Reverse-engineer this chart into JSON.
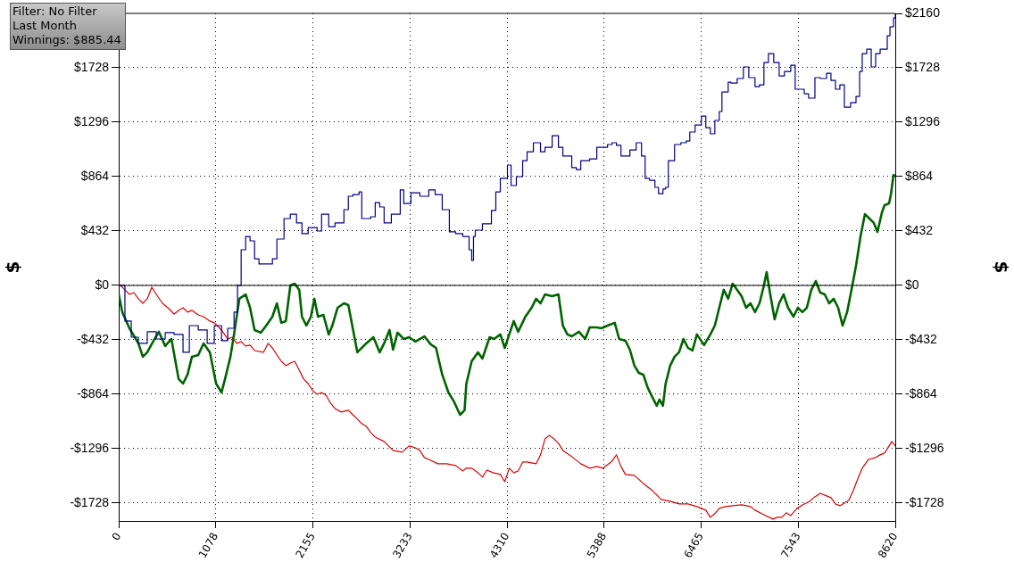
{
  "chart_data": {
    "type": "line",
    "ylabel": "$",
    "y2label": "$",
    "annotations": [
      "Filter: No Filter",
      "Last Month",
      "Winnings: $885.44"
    ],
    "xlim": [
      0,
      8620
    ],
    "xticks": [
      0,
      1078,
      2155,
      3233,
      4310,
      5388,
      6465,
      7543,
      8620
    ],
    "ylim": [
      -1870,
      2160
    ],
    "yticks": [
      {
        "value": -1728,
        "label": "-$1728"
      },
      {
        "value": -1296,
        "label": "-$1296"
      },
      {
        "value": -864,
        "label": "-$864"
      },
      {
        "value": -432,
        "label": "-$432"
      },
      {
        "value": 0,
        "label": "$0"
      },
      {
        "value": 432,
        "label": "$432"
      },
      {
        "value": 864,
        "label": "$864"
      },
      {
        "value": 1296,
        "label": "$1296"
      },
      {
        "value": 1728,
        "label": "$1728"
      }
    ],
    "y2lim": [
      -1870,
      2160
    ],
    "y2ticks": [
      {
        "value": -1728,
        "label": "-$1728"
      },
      {
        "value": -1296,
        "label": "-$1296"
      },
      {
        "value": -864,
        "label": "-$864"
      },
      {
        "value": -432,
        "label": "-$432"
      },
      {
        "value": 0,
        "label": "$0"
      },
      {
        "value": 432,
        "label": "$432"
      },
      {
        "value": 864,
        "label": "$864"
      },
      {
        "value": 1296,
        "label": "$1296"
      },
      {
        "value": 1728,
        "label": "$1728"
      },
      {
        "value": 2160,
        "label": "$2160"
      }
    ],
    "grid": true,
    "legend": false,
    "ref_lines": [
      {
        "axis": "y",
        "value": 0,
        "color": "#000000"
      }
    ],
    "series": [
      {
        "type": "step",
        "color": "#00008b",
        "x": [
          0,
          69,
          139,
          218,
          317,
          417,
          516,
          615,
          714,
          784,
          883,
          982,
          1061,
          1141,
          1210,
          1280,
          1319,
          1359,
          1409,
          1458,
          1508,
          1557,
          1657,
          1706,
          1756,
          1835,
          1905,
          1974,
          2034,
          2103,
          2202,
          2252,
          2331,
          2401,
          2500,
          2549,
          2599,
          2668,
          2698,
          2797,
          2847,
          2897,
          2946,
          3026,
          3125,
          3164,
          3244,
          3343,
          3442,
          3512,
          3591,
          3670,
          3740,
          3819,
          3889,
          3918,
          3938,
          3958,
          4037,
          4137,
          4186,
          4236,
          4315,
          4355,
          4414,
          4484,
          4533,
          4603,
          4682,
          4732,
          4811,
          4881,
          4930,
          5029,
          5079,
          5129,
          5228,
          5307,
          5426,
          5476,
          5525,
          5575,
          5674,
          5744,
          5803,
          5843,
          5892,
          5952,
          5992,
          6041,
          6071,
          6101,
          6170,
          6240,
          6299,
          6339,
          6398,
          6468,
          6517,
          6567,
          6617,
          6666,
          6696,
          6765,
          6795,
          6865,
          6934,
          6994,
          7063,
          7113,
          7162,
          7212,
          7271,
          7331,
          7390,
          7460,
          7509,
          7609,
          7658,
          7728,
          7787,
          7857,
          7906,
          7956,
          8005,
          8055,
          8124,
          8184,
          8224,
          8253,
          8303,
          8353,
          8402,
          8452,
          8531,
          8561,
          8601,
          8620
        ],
        "values": [
          0,
          -283,
          -411,
          -460,
          -368,
          -425,
          -375,
          -389,
          -531,
          -319,
          -354,
          -460,
          -319,
          -439,
          -340,
          -212,
          0,
          283,
          389,
          354,
          212,
          170,
          170,
          212,
          368,
          531,
          566,
          496,
          411,
          460,
          432,
          566,
          467,
          496,
          602,
          708,
          722,
          743,
          531,
          545,
          658,
          623,
          496,
          566,
          758,
          651,
          736,
          708,
          758,
          722,
          602,
          425,
          411,
          389,
          283,
          198,
          389,
          439,
          489,
          595,
          743,
          850,
          956,
          793,
          864,
          991,
          1062,
          1133,
          1062,
          1097,
          1189,
          1097,
          1027,
          935,
          920,
          991,
          1005,
          1097,
          1119,
          1133,
          1112,
          1027,
          1076,
          1133,
          1027,
          850,
          835,
          779,
          729,
          765,
          779,
          991,
          1119,
          1133,
          1147,
          1218,
          1274,
          1345,
          1253,
          1204,
          1310,
          1381,
          1536,
          1614,
          1607,
          1643,
          1735,
          1650,
          1579,
          1593,
          1770,
          1841,
          1770,
          1664,
          1699,
          1749,
          1558,
          1522,
          1487,
          1650,
          1643,
          1685,
          1628,
          1558,
          1593,
          1416,
          1451,
          1501,
          1699,
          1841,
          1876,
          1735,
          1841,
          1876,
          1982,
          2053,
          2124,
          2159
        ]
      },
      {
        "color": "#006400",
        "x": [
          0,
          40,
          119,
          218,
          268,
          317,
          387,
          446,
          516,
          585,
          665,
          714,
          764,
          813,
          883,
          942,
          1012,
          1081,
          1141,
          1180,
          1240,
          1280,
          1339,
          1409,
          1458,
          1508,
          1577,
          1637,
          1706,
          1756,
          1805,
          1855,
          1905,
          1954,
          2004,
          2034,
          2083,
          2133,
          2172,
          2212,
          2272,
          2331,
          2371,
          2430,
          2500,
          2549,
          2649,
          2748,
          2827,
          2897,
          2946,
          3006,
          3045,
          3095,
          3164,
          3224,
          3293,
          3393,
          3462,
          3522,
          3591,
          3660,
          3720,
          3789,
          3839,
          3859,
          3918,
          3988,
          4037,
          4117,
          4166,
          4236,
          4285,
          4335,
          4385,
          4434,
          4514,
          4583,
          4633,
          4682,
          4732,
          4811,
          4881,
          4930,
          4980,
          5029,
          5109,
          5178,
          5228,
          5307,
          5357,
          5426,
          5506,
          5555,
          5625,
          5674,
          5724,
          5773,
          5823,
          5873,
          5922,
          5972,
          6002,
          6041,
          6071,
          6121,
          6170,
          6220,
          6269,
          6319,
          6369,
          6418,
          6498,
          6567,
          6617,
          6666,
          6716,
          6765,
          6815,
          6865,
          6914,
          6964,
          7013,
          7063,
          7113,
          7162,
          7192,
          7232,
          7281,
          7331,
          7380,
          7430,
          7490,
          7539,
          7589,
          7638,
          7688,
          7738,
          7787,
          7837,
          7886,
          7936,
          7986,
          8035,
          8085,
          8134,
          8184,
          8234,
          8283,
          8333,
          8382,
          8422,
          8472,
          8501,
          8551,
          8571,
          8601,
          8620
        ],
        "values": [
          -71,
          -212,
          -340,
          -460,
          -566,
          -531,
          -439,
          -368,
          -481,
          -425,
          -743,
          -779,
          -708,
          -566,
          -552,
          -460,
          -531,
          -779,
          -850,
          -743,
          -566,
          -389,
          -106,
          -71,
          -177,
          -354,
          -375,
          -319,
          -248,
          -142,
          -297,
          -283,
          0,
          14,
          -35,
          -248,
          -319,
          -248,
          -106,
          -248,
          -234,
          -389,
          -319,
          -177,
          -142,
          -156,
          -531,
          -460,
          -411,
          -531,
          -460,
          -354,
          -510,
          -375,
          -425,
          -411,
          -446,
          -404,
          -467,
          -496,
          -708,
          -850,
          -920,
          -1027,
          -991,
          -779,
          -602,
          -531,
          -581,
          -411,
          -425,
          -389,
          -496,
          -389,
          -283,
          -368,
          -248,
          -177,
          -106,
          -142,
          -71,
          -85,
          -71,
          -319,
          -389,
          -404,
          -368,
          -425,
          -333,
          -333,
          -340,
          -319,
          -297,
          -425,
          -439,
          -510,
          -637,
          -694,
          -708,
          -814,
          -885,
          -956,
          -906,
          -956,
          -779,
          -637,
          -566,
          -531,
          -425,
          -496,
          -517,
          -389,
          -474,
          -389,
          -319,
          -177,
          -35,
          -106,
          14,
          -35,
          -85,
          -177,
          -142,
          -212,
          -142,
          0,
          106,
          -71,
          -269,
          -142,
          -71,
          -177,
          -248,
          -177,
          -212,
          -177,
          -35,
          35,
          -57,
          -71,
          -142,
          -106,
          -177,
          -319,
          -212,
          -35,
          156,
          389,
          566,
          531,
          496,
          425,
          581,
          637,
          651,
          722,
          878,
          864
        ]
      },
      {
        "color": "#dd0000",
        "x": [
          0,
          69,
          119,
          169,
          218,
          268,
          317,
          367,
          417,
          486,
          546,
          615,
          665,
          714,
          764,
          813,
          883,
          942,
          1012,
          1061,
          1141,
          1210,
          1260,
          1309,
          1359,
          1409,
          1458,
          1508,
          1607,
          1657,
          1706,
          1756,
          1805,
          1855,
          1905,
          1954,
          2004,
          2053,
          2103,
          2153,
          2202,
          2252,
          2301,
          2351,
          2401,
          2470,
          2549,
          2599,
          2649,
          2698,
          2748,
          2797,
          2847,
          2946,
          3045,
          3145,
          3224,
          3293,
          3343,
          3393,
          3442,
          3541,
          3641,
          3740,
          3819,
          3859,
          3918,
          3988,
          4037,
          4087,
          4156,
          4236,
          4285,
          4335,
          4385,
          4434,
          4484,
          4533,
          4633,
          4682,
          4732,
          4781,
          4831,
          4881,
          4930,
          5029,
          5129,
          5228,
          5307,
          5377,
          5476,
          5525,
          5575,
          5625,
          5724,
          5823,
          5922,
          6021,
          6121,
          6220,
          6319,
          6418,
          6517,
          6567,
          6617,
          6666,
          6736,
          6815,
          6914,
          7013,
          7063,
          7162,
          7261,
          7311,
          7361,
          7410,
          7460,
          7529,
          7609,
          7658,
          7728,
          7787,
          7857,
          7906,
          7956,
          8005,
          8105,
          8154,
          8204,
          8253,
          8323,
          8402,
          8452,
          8501,
          8551,
          8581,
          8620
        ],
        "values": [
          14,
          -35,
          -71,
          -57,
          -106,
          -142,
          -106,
          -14,
          -71,
          -142,
          -177,
          -227,
          -198,
          -177,
          -212,
          -198,
          -234,
          -248,
          -283,
          -297,
          -354,
          -425,
          -411,
          -460,
          -446,
          -481,
          -474,
          -517,
          -531,
          -460,
          -496,
          -552,
          -602,
          -637,
          -616,
          -602,
          -673,
          -743,
          -779,
          -835,
          -864,
          -850,
          -871,
          -935,
          -977,
          -1005,
          -991,
          -1027,
          -1062,
          -1097,
          -1119,
          -1168,
          -1204,
          -1239,
          -1310,
          -1324,
          -1274,
          -1289,
          -1310,
          -1366,
          -1381,
          -1416,
          -1416,
          -1430,
          -1473,
          -1451,
          -1451,
          -1487,
          -1522,
          -1466,
          -1487,
          -1501,
          -1558,
          -1451,
          -1487,
          -1473,
          -1402,
          -1402,
          -1416,
          -1345,
          -1218,
          -1189,
          -1218,
          -1253,
          -1310,
          -1359,
          -1416,
          -1451,
          -1437,
          -1451,
          -1395,
          -1345,
          -1437,
          -1501,
          -1508,
          -1572,
          -1628,
          -1699,
          -1713,
          -1735,
          -1735,
          -1756,
          -1784,
          -1841,
          -1812,
          -1770,
          -1756,
          -1749,
          -1742,
          -1756,
          -1784,
          -1820,
          -1855,
          -1841,
          -1841,
          -1805,
          -1827,
          -1770,
          -1735,
          -1720,
          -1678,
          -1650,
          -1671,
          -1685,
          -1735,
          -1749,
          -1706,
          -1628,
          -1536,
          -1451,
          -1381,
          -1366,
          -1345,
          -1331,
          -1274,
          -1239,
          -1274
        ]
      }
    ]
  }
}
